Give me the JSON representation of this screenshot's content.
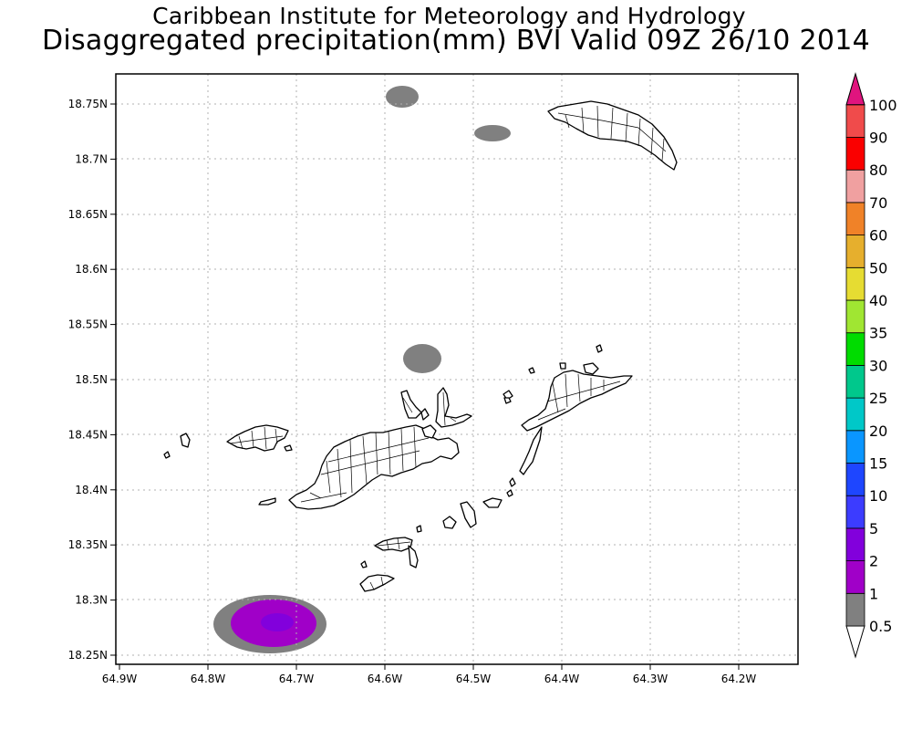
{
  "header": {
    "title": "Caribbean Institute for Meteorology and Hydrology",
    "subtitle": "Disaggregated precipitation(mm) BVI Valid 09Z 26/10 2014"
  },
  "map": {
    "lon_ticks": [
      "64.9W",
      "64.8W",
      "64.7W",
      "64.6W",
      "64.5W",
      "64.4W",
      "64.3W",
      "64.2W"
    ],
    "lat_ticks": [
      "18.25N",
      "18.3N",
      "18.35N",
      "18.4N",
      "18.45N",
      "18.5N",
      "18.55N",
      "18.6N",
      "18.65N",
      "18.7N",
      "18.75N"
    ],
    "grid": true,
    "gridline_color": "#b0b0b0",
    "land_color": "#ffffff",
    "outline_color": "#000000"
  },
  "colorbar": {
    "levels": [
      "0.5",
      "1",
      "2",
      "5",
      "10",
      "15",
      "20",
      "25",
      "30",
      "35",
      "40",
      "50",
      "60",
      "70",
      "80",
      "90",
      "100"
    ],
    "colors": [
      "#808080",
      "#a000c8",
      "#8200dc",
      "#3c3cff",
      "#1e46ff",
      "#0a96ff",
      "#00c8c8",
      "#00c88c",
      "#00dc00",
      "#a0e632",
      "#e6dc32",
      "#e6af2d",
      "#f08228",
      "#f0a0a0",
      "#fa0000",
      "#f04b4b",
      "#e0147e"
    ]
  },
  "precipitation_areas": [
    {
      "name": "anegada-north-cell",
      "min_mm": 0.5
    },
    {
      "name": "anegada-east-cell",
      "min_mm": 0.5
    },
    {
      "name": "central-cell",
      "min_mm": 0.5
    },
    {
      "name": "southwest-cell",
      "min_mm": 0.5,
      "core_min_mm": 1,
      "inner_min_mm": 2
    }
  ]
}
